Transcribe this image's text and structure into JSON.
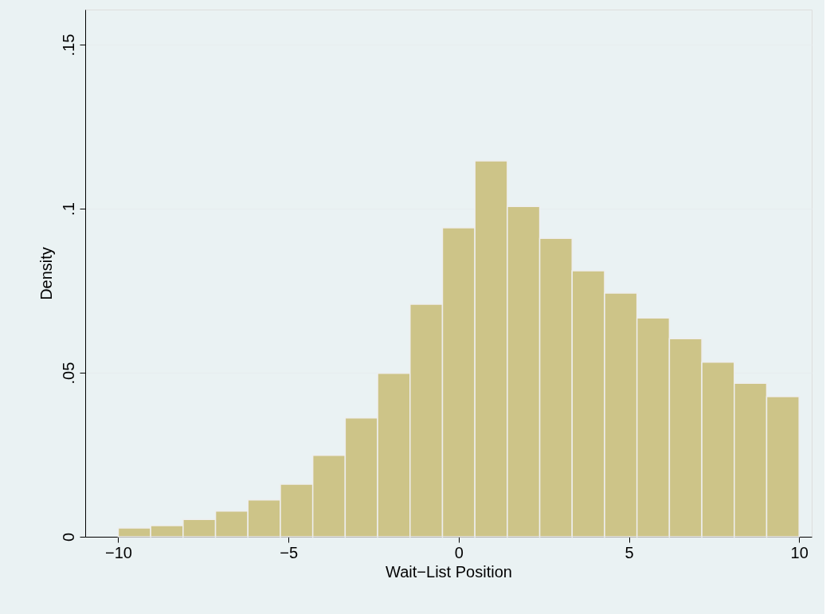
{
  "chart_data": {
    "type": "histogram",
    "xlabel": "Wait−List Position",
    "ylabel": "Density",
    "bins": [
      -10,
      -9.0476,
      -8.0952,
      -7.1429,
      -6.1905,
      -5.2381,
      -4.2857,
      -3.3333,
      -2.381,
      -1.4286,
      -0.4762,
      0.4762,
      1.4286,
      2.381,
      3.3333,
      4.2857,
      5.2381,
      6.1905,
      7.1429,
      8.0952,
      9.0476,
      10
    ],
    "values": [
      0.0027,
      0.0034,
      0.0053,
      0.0078,
      0.0112,
      0.016,
      0.0248,
      0.0362,
      0.0498,
      0.0709,
      0.0942,
      0.1146,
      0.1007,
      0.091,
      0.0811,
      0.0743,
      0.0667,
      0.0604,
      0.0532,
      0.0468,
      0.0427
    ],
    "color": "#cdc488",
    "xlim": [
      -10.97,
      10.37
    ],
    "ylim": [
      0,
      0.1607
    ],
    "xticks": [
      {
        "value": -10,
        "label": "−10"
      },
      {
        "value": -5,
        "label": "−5"
      },
      0,
      5,
      10
    ],
    "yticks": [
      0,
      {
        "value": 0.05,
        "label": ".05"
      },
      {
        "value": 0.1,
        "label": ".1"
      },
      {
        "value": 0.15,
        "label": ".15"
      }
    ],
    "grid": "y"
  }
}
